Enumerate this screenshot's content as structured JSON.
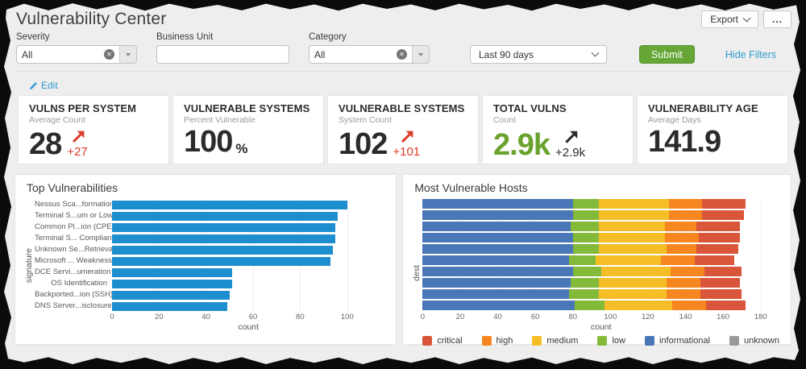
{
  "header": {
    "title": "Vulnerability Center",
    "export_label": "Export",
    "more_label": "..."
  },
  "icons": {
    "clear": "✕",
    "edit_pencil": "edit-pencil",
    "chevron_down": "chevron-down",
    "caret_down": "caret-down",
    "trend_arrow": "arrow-up-right"
  },
  "filters": {
    "severity": {
      "label": "Severity",
      "value": "All"
    },
    "business_unit": {
      "label": "Business Unit",
      "value": "",
      "placeholder": ""
    },
    "category": {
      "label": "Category",
      "value": "All"
    },
    "time_range": {
      "value": "Last 90 days"
    },
    "submit_label": "Submit",
    "hide_filters_label": "Hide Filters"
  },
  "edit_label": "Edit",
  "kpis": [
    {
      "title": "VULNS PER SYSTEM",
      "subtitle": "Average Count",
      "value": "28",
      "value_color": "#2b2b2b",
      "unit": "",
      "delta": "+27",
      "trend_color": "#dc3b28"
    },
    {
      "title": "VULNERABLE SYSTEMS",
      "subtitle": "Percent Vulnerable",
      "value": "100",
      "value_color": "#2b2b2b",
      "unit": "%",
      "delta": "",
      "trend_color": ""
    },
    {
      "title": "VULNERABLE SYSTEMS",
      "subtitle": "System Count",
      "value": "102",
      "value_color": "#2b2b2b",
      "unit": "",
      "delta": "+101",
      "trend_color": "#dc3b28"
    },
    {
      "title": "TOTAL VULNS",
      "subtitle": "Count",
      "value": "2.9k",
      "value_color": "#6aa22e",
      "unit": "",
      "delta": "+2.9k",
      "trend_color": "#2b2b2b"
    },
    {
      "title": "VULNERABILITY AGE",
      "subtitle": "Average Days",
      "value": "141.9",
      "value_color": "#2b2b2b",
      "unit": "",
      "delta": "",
      "trend_color": ""
    }
  ],
  "chart_data": [
    {
      "type": "bar",
      "orientation": "horizontal",
      "title": "Top Vulnerabilities",
      "categories": [
        "Nessus Sca...formation",
        "Terminal S...um or Low",
        "Common Pl...ion (CPE)",
        "Terminal S... Compliant",
        "Unknown Se...Retrieval",
        "Microsoft ... Weakness",
        "DCE Servi...umeration",
        "OS Identification",
        "Backported...ion (SSH)",
        "DNS Server...isclosure"
      ],
      "values": [
        100,
        96,
        95,
        95,
        94,
        93,
        51,
        51,
        50,
        49
      ],
      "xlabel": "count",
      "ylabel": "signature",
      "xticks": [
        0,
        20,
        40,
        60,
        80,
        100
      ],
      "xlim": [
        0,
        116
      ],
      "bar_color": "#1e8fce",
      "grid": true
    },
    {
      "type": "stacked-bar",
      "orientation": "horizontal",
      "title": "Most Vulnerable Hosts",
      "xlabel": "count",
      "ylabel": "dest",
      "xticks": [
        0,
        20,
        40,
        60,
        80,
        100,
        120,
        140,
        160,
        180
      ],
      "xlim": [
        0,
        190
      ],
      "grid": true,
      "series": [
        {
          "name": "informational",
          "color": "#4a77b8",
          "values": [
            80,
            80,
            79,
            80,
            80,
            78,
            80,
            79,
            78,
            81
          ]
        },
        {
          "name": "low",
          "color": "#84ba3a",
          "values": [
            14,
            14,
            15,
            14,
            14,
            14,
            15,
            15,
            16,
            16
          ]
        },
        {
          "name": "medium",
          "color": "#f5bd26",
          "values": [
            37,
            37,
            35,
            35,
            36,
            35,
            37,
            36,
            36,
            36
          ]
        },
        {
          "name": "high",
          "color": "#f6861f",
          "values": [
            18,
            18,
            17,
            18,
            16,
            18,
            18,
            18,
            18,
            18
          ]
        },
        {
          "name": "critical",
          "color": "#d9563a",
          "values": [
            23,
            22,
            23,
            22,
            22,
            21,
            20,
            21,
            22,
            21
          ]
        }
      ],
      "legend_position": "bottom",
      "legend": [
        {
          "label": "critical",
          "color": "#d9563a"
        },
        {
          "label": "high",
          "color": "#f6861f"
        },
        {
          "label": "medium",
          "color": "#f5bd26"
        },
        {
          "label": "low",
          "color": "#84ba3a"
        },
        {
          "label": "informational",
          "color": "#4a77b8"
        },
        {
          "label": "unknown",
          "color": "#9a9a9a"
        }
      ]
    }
  ]
}
